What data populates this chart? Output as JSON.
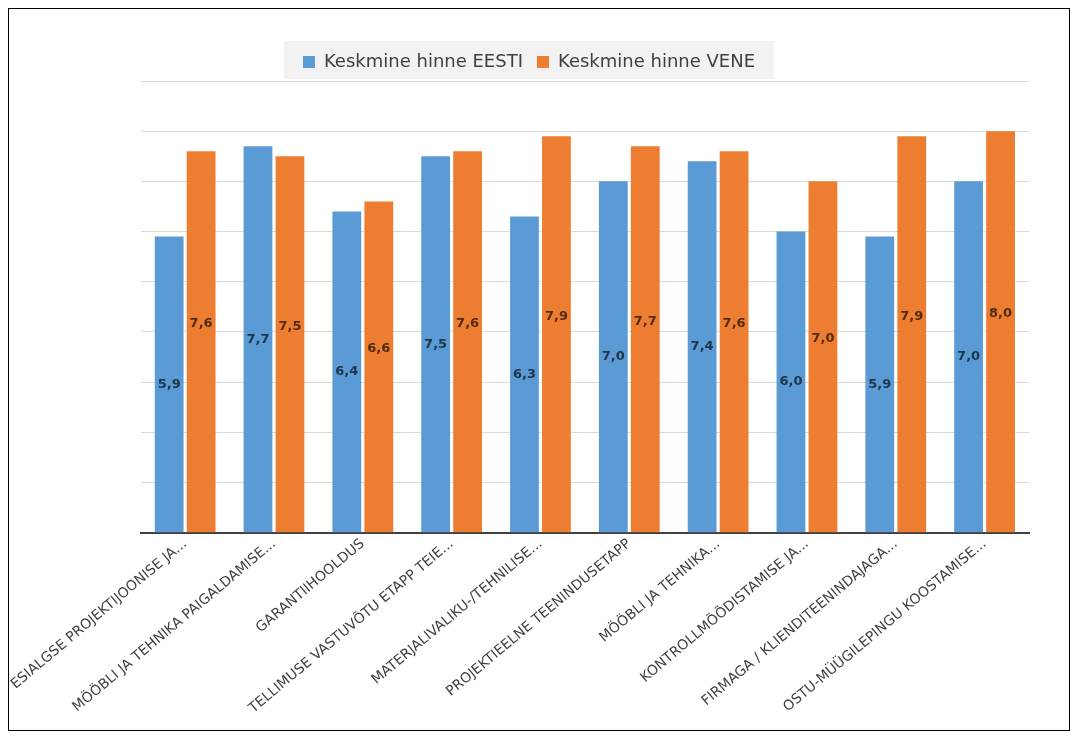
{
  "chart_data": {
    "type": "bar",
    "categories": [
      "ESIALGSE PROJEKTIJOONISE JA...",
      "MÖÖBLI JA TEHNIKA PAIGALDAMISE...",
      "GARANTIIHOOLDUS",
      "TELLIMUSE VASTUVÕTU ETAPP TEIE...",
      "MATERJALIVALIKU-/TEHNILISE...",
      "PROJEKTIEELNE TEENINDUSETAPP",
      "MÖÖBLI JA TEHNIKA...",
      "KONTROLLMÕÕDISTAMISE JA...",
      "FIRMAGA / KLIENDITEENINDAJAGA...",
      "OSTU-MÜÜGILEPINGU KOOSTAMISE..."
    ],
    "series": [
      {
        "name": "Keskmine hinne EESTI",
        "color": "#5b9bd5",
        "values": [
          5.9,
          7.7,
          6.4,
          7.5,
          6.3,
          7.0,
          7.4,
          6.0,
          5.9,
          7.0
        ],
        "value_labels": [
          "5,9",
          "7,7",
          "6,4",
          "7,5",
          "6,3",
          "7,0",
          "7,4",
          "6,0",
          "5,9",
          "7,0"
        ]
      },
      {
        "name": "Keskmine hinne VENE",
        "color": "#ed7d31",
        "values": [
          7.6,
          7.5,
          6.6,
          7.6,
          7.9,
          7.7,
          7.6,
          7.0,
          7.9,
          8.0
        ],
        "value_labels": [
          "7,6",
          "7,5",
          "6,6",
          "7,6",
          "7,9",
          "7,7",
          "7,6",
          "7,0",
          "7,9",
          "8,0"
        ]
      }
    ],
    "ylim": [
      0,
      9
    ],
    "yticks": [
      {
        "value": 0,
        "label": null
      },
      {
        "value": 1,
        "label": null
      },
      {
        "value": 2,
        "label": null
      },
      {
        "value": 3,
        "label": null
      },
      {
        "value": 4,
        "label": null
      },
      {
        "value": 5,
        "label": null
      },
      {
        "value": 6,
        "label": null
      },
      {
        "value": 7,
        "label": null
      },
      {
        "value": 8,
        "label": null
      },
      {
        "value": 9,
        "label": null
      }
    ],
    "tick_labels": "x",
    "grid": "y",
    "legend": "top"
  }
}
